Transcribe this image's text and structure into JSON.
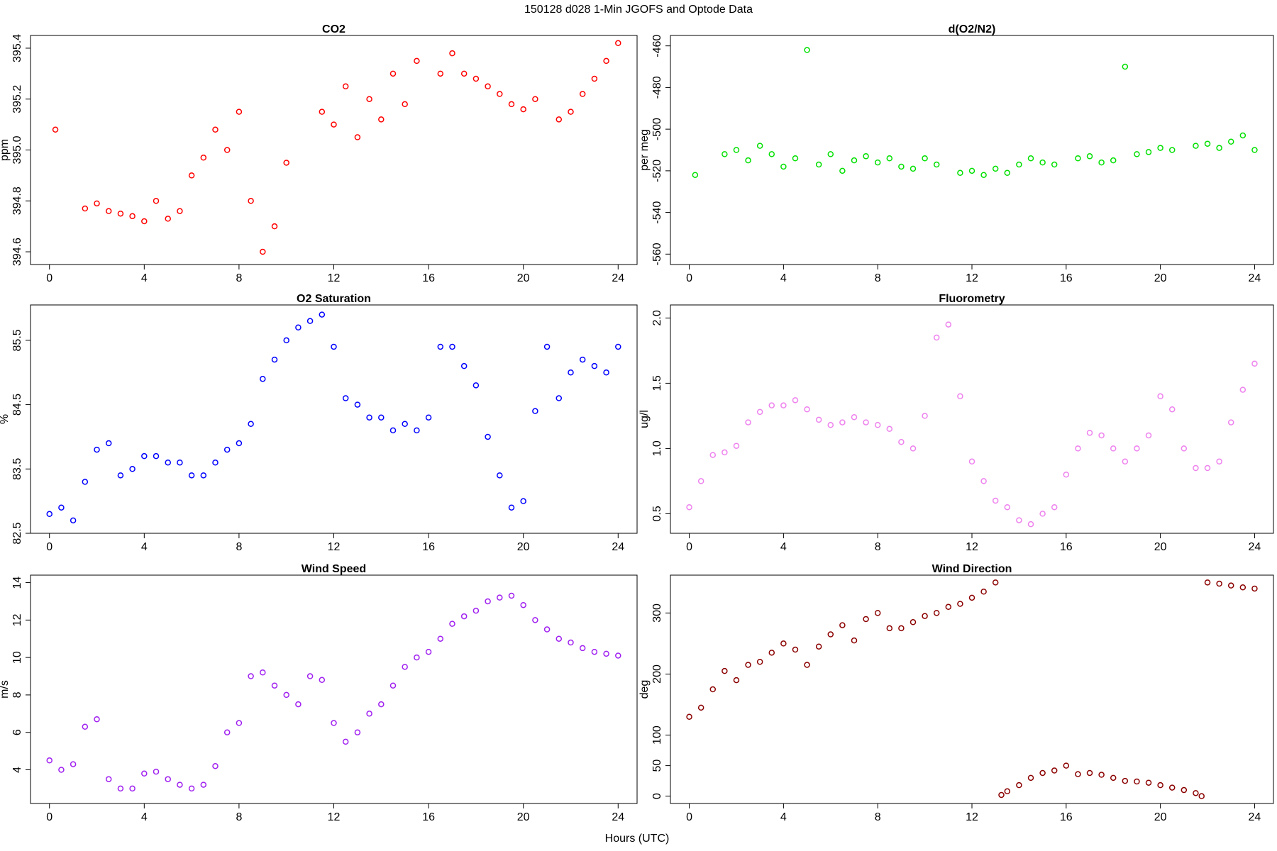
{
  "title": "150128   d028   1-Min  JGOFS and Optode Data",
  "xlabel": "Hours (UTC)",
  "chart_data": [
    {
      "type": "scatter",
      "title": "CO2",
      "ylabel": "ppm",
      "color": "#ff0000",
      "xlim": [
        -0.8,
        24.8
      ],
      "xticks": [
        0,
        4,
        8,
        12,
        16,
        20,
        24
      ],
      "ylim": [
        394.55,
        395.45
      ],
      "yticks": [
        394.6,
        394.8,
        {
          "value": 395,
          "label": "395.0"
        },
        395.2,
        395.4
      ],
      "x": [
        0.25,
        1.5,
        2,
        2.5,
        3,
        3.5,
        4,
        4.5,
        5,
        5.5,
        6,
        6.5,
        7,
        7.5,
        8,
        8.5,
        9,
        9.5,
        10,
        11.5,
        12,
        12.5,
        13,
        13.5,
        14,
        14.5,
        15,
        15.5,
        16.5,
        17,
        17.5,
        18,
        18.5,
        19,
        19.5,
        20,
        20.5,
        21.5,
        22,
        22.5,
        23,
        23.5,
        24
      ],
      "y": [
        395.08,
        394.77,
        394.79,
        394.76,
        394.75,
        394.74,
        394.72,
        394.8,
        394.73,
        394.76,
        394.9,
        394.97,
        395.08,
        395.0,
        395.15,
        394.8,
        394.6,
        394.7,
        394.95,
        395.15,
        395.1,
        395.25,
        395.05,
        395.2,
        395.12,
        395.3,
        395.18,
        395.35,
        395.3,
        395.38,
        395.3,
        395.28,
        395.25,
        395.22,
        395.18,
        395.16,
        395.2,
        395.12,
        395.15,
        395.22,
        395.28,
        395.35,
        395.42
      ]
    },
    {
      "type": "scatter",
      "title": "d(O2/N2)",
      "ylabel": "per meg",
      "color": "#00e000",
      "xlim": [
        -0.8,
        24.8
      ],
      "xticks": [
        0,
        4,
        8,
        12,
        16,
        20,
        24
      ],
      "ylim": [
        -565,
        -455
      ],
      "yticks": [
        -560,
        -540,
        -520,
        -500,
        -480,
        -460
      ],
      "x": [
        0.25,
        1.5,
        2,
        2.5,
        3,
        3.5,
        4,
        4.5,
        5,
        5.5,
        6,
        6.5,
        7,
        7.5,
        8,
        8.5,
        9,
        9.5,
        10,
        10.5,
        11.5,
        12,
        12.5,
        13,
        13.5,
        14,
        14.5,
        15,
        15.5,
        16.5,
        17,
        17.5,
        18,
        18.5,
        19,
        19.5,
        20,
        20.5,
        21.5,
        22,
        22.5,
        23,
        23.5,
        24
      ],
      "y": [
        -522,
        -512,
        -510,
        -515,
        -508,
        -512,
        -518,
        -514,
        -462,
        -517,
        -512,
        -520,
        -515,
        -513,
        -516,
        -514,
        -518,
        -519,
        -514,
        -517,
        -521,
        -520,
        -522,
        -519,
        -521,
        -517,
        -514,
        -516,
        -517,
        -514,
        -513,
        -516,
        -515,
        -470,
        -512,
        -511,
        -509,
        -510,
        -508,
        -507,
        -509,
        -506,
        -503,
        -510
      ]
    },
    {
      "type": "scatter",
      "title": "O2 Saturation",
      "ylabel": "%",
      "color": "#0000ff",
      "xlim": [
        -0.8,
        24.8
      ],
      "xticks": [
        0,
        4,
        8,
        12,
        16,
        20,
        24
      ],
      "ylim": [
        82.5,
        86.05
      ],
      "yticks": [
        82.5,
        83.5,
        84.5,
        85.5
      ],
      "x": [
        0,
        0.5,
        1,
        1.5,
        2,
        2.5,
        3,
        3.5,
        4,
        4.5,
        5,
        5.5,
        6,
        6.5,
        7,
        7.5,
        8,
        8.5,
        9,
        9.5,
        10,
        10.5,
        11,
        11.5,
        12,
        12.5,
        13,
        13.5,
        14,
        14.5,
        15,
        15.5,
        16,
        16.5,
        17,
        17.5,
        18,
        18.5,
        19,
        19.5,
        20,
        20.5,
        21,
        21.5,
        22,
        22.5,
        23,
        23.5,
        24
      ],
      "y": [
        82.8,
        82.9,
        82.7,
        83.3,
        83.8,
        83.9,
        83.4,
        83.5,
        83.7,
        83.7,
        83.6,
        83.6,
        83.4,
        83.4,
        83.6,
        83.8,
        83.9,
        84.2,
        84.9,
        85.2,
        85.5,
        85.7,
        85.8,
        85.9,
        85.4,
        84.6,
        84.5,
        84.3,
        84.3,
        84.1,
        84.2,
        84.1,
        84.3,
        85.4,
        85.4,
        85.1,
        84.8,
        84.0,
        83.4,
        82.9,
        83.0,
        84.4,
        85.4,
        84.6,
        85.0,
        85.2,
        85.1,
        85.0,
        85.4
      ]
    },
    {
      "type": "scatter",
      "title": "Fluorometry",
      "ylabel": "ug/l",
      "color": "#ee82ee",
      "xlim": [
        -0.8,
        24.8
      ],
      "xticks": [
        0,
        4,
        8,
        12,
        16,
        20,
        24
      ],
      "ylim": [
        0.35,
        2.1
      ],
      "yticks": [
        0.5,
        {
          "value": 1,
          "label": "1.0"
        },
        1.5,
        {
          "value": 2,
          "label": "2.0"
        }
      ],
      "x": [
        0,
        0.5,
        1,
        1.5,
        2,
        2.5,
        3,
        3.5,
        4,
        4.5,
        5,
        5.5,
        6,
        6.5,
        7,
        7.5,
        8,
        8.5,
        9,
        9.5,
        10,
        10.5,
        11,
        11.5,
        12,
        12.5,
        13,
        13.5,
        14,
        14.5,
        15,
        15.5,
        16,
        16.5,
        17,
        17.5,
        18,
        18.5,
        19,
        19.5,
        20,
        20.5,
        21,
        21.5,
        22,
        22.5,
        23,
        23.5,
        24
      ],
      "y": [
        0.55,
        0.75,
        0.95,
        0.97,
        1.02,
        1.2,
        1.28,
        1.33,
        1.33,
        1.37,
        1.3,
        1.22,
        1.18,
        1.2,
        1.24,
        1.2,
        1.18,
        1.15,
        1.05,
        1.0,
        1.25,
        1.85,
        1.95,
        1.4,
        0.9,
        0.75,
        0.6,
        0.55,
        0.45,
        0.42,
        0.5,
        0.55,
        0.8,
        1.0,
        1.12,
        1.1,
        1.0,
        0.9,
        1.0,
        1.1,
        1.4,
        1.3,
        1.0,
        0.85,
        0.85,
        0.9,
        1.2,
        1.45,
        1.65
      ]
    },
    {
      "type": "scatter",
      "title": "Wind Speed",
      "ylabel": "m/s",
      "color": "#a020f0",
      "xlim": [
        -0.8,
        24.8
      ],
      "xticks": [
        0,
        4,
        8,
        12,
        16,
        20,
        24
      ],
      "ylim": [
        2.2,
        14.4
      ],
      "yticks": [
        4,
        6,
        8,
        10,
        12,
        14
      ],
      "x": [
        0,
        0.5,
        1,
        1.5,
        2,
        2.5,
        3,
        3.5,
        4,
        4.5,
        5,
        5.5,
        6,
        6.5,
        7,
        7.5,
        8,
        8.5,
        9,
        9.5,
        10,
        10.5,
        11,
        11.5,
        12,
        12.5,
        13,
        13.5,
        14,
        14.5,
        15,
        15.5,
        16,
        16.5,
        17,
        17.5,
        18,
        18.5,
        19,
        19.5,
        20,
        20.5,
        21,
        21.5,
        22,
        22.5,
        23,
        23.5,
        24
      ],
      "y": [
        4.5,
        4.0,
        4.3,
        6.3,
        6.7,
        3.5,
        3.0,
        3.0,
        3.8,
        3.9,
        3.5,
        3.2,
        3.0,
        3.2,
        4.2,
        6.0,
        6.5,
        9.0,
        9.2,
        8.5,
        8.0,
        7.5,
        9.0,
        8.8,
        6.5,
        5.5,
        6.0,
        7.0,
        7.5,
        8.5,
        9.5,
        10.0,
        10.3,
        11.0,
        11.8,
        12.2,
        12.5,
        13.0,
        13.2,
        13.3,
        12.8,
        12.0,
        11.5,
        11.0,
        10.8,
        10.5,
        10.3,
        10.2,
        10.1
      ]
    },
    {
      "type": "scatter",
      "title": "Wind Direction",
      "ylabel": "deg",
      "color": "#8b0000",
      "xlim": [
        -0.8,
        24.8
      ],
      "xticks": [
        0,
        4,
        8,
        12,
        16,
        20,
        24
      ],
      "ylim": [
        -12,
        362
      ],
      "yticks": [
        0,
        50,
        100,
        200,
        300
      ],
      "x": [
        0,
        0.5,
        1,
        1.5,
        2,
        2.5,
        3,
        3.5,
        4,
        4.5,
        5,
        5.5,
        6,
        6.5,
        7,
        7.5,
        8,
        8.5,
        9,
        9.5,
        10,
        10.5,
        11,
        11.5,
        12,
        12.5,
        13,
        13.25,
        13.5,
        14,
        14.5,
        15,
        15.5,
        16,
        16.5,
        17,
        17.5,
        18,
        18.5,
        19,
        19.5,
        20,
        20.5,
        21,
        21.5,
        21.75,
        22,
        22.5,
        23,
        23.5,
        24
      ],
      "y": [
        130,
        145,
        175,
        205,
        190,
        215,
        220,
        235,
        250,
        240,
        215,
        245,
        265,
        280,
        255,
        290,
        300,
        275,
        275,
        285,
        295,
        300,
        310,
        315,
        325,
        335,
        350,
        2,
        8,
        18,
        30,
        38,
        42,
        50,
        36,
        38,
        35,
        30,
        25,
        24,
        22,
        18,
        14,
        10,
        5,
        0,
        350,
        348,
        345,
        342,
        340
      ]
    }
  ]
}
